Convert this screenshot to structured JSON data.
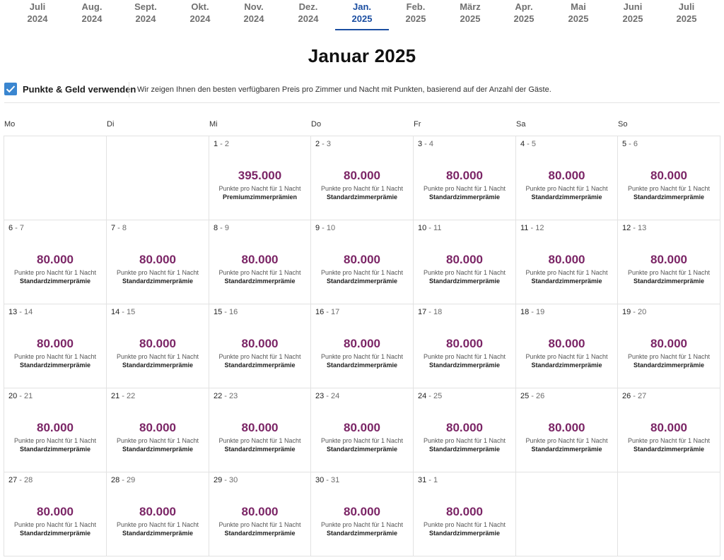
{
  "months": [
    {
      "month": "Juli",
      "year": "2024",
      "active": false
    },
    {
      "month": "Aug.",
      "year": "2024",
      "active": false
    },
    {
      "month": "Sept.",
      "year": "2024",
      "active": false
    },
    {
      "month": "Okt.",
      "year": "2024",
      "active": false
    },
    {
      "month": "Nov.",
      "year": "2024",
      "active": false
    },
    {
      "month": "Dez.",
      "year": "2024",
      "active": false
    },
    {
      "month": "Jan.",
      "year": "2025",
      "active": true
    },
    {
      "month": "Feb.",
      "year": "2025",
      "active": false
    },
    {
      "month": "März",
      "year": "2025",
      "active": false
    },
    {
      "month": "Apr.",
      "year": "2025",
      "active": false
    },
    {
      "month": "Mai",
      "year": "2025",
      "active": false
    },
    {
      "month": "Juni",
      "year": "2025",
      "active": false
    },
    {
      "month": "Juli",
      "year": "2025",
      "active": false
    }
  ],
  "calendar_title": "Januar 2025",
  "points_and_money": {
    "checked": true,
    "label": "Punkte & Geld verwenden",
    "description": "Wir zeigen Ihnen den besten verfügbaren Preis pro Zimmer und Nacht mit Punkten, basierend auf der Anzahl der Gäste."
  },
  "weekdays": [
    "Mo",
    "Di",
    "Mi",
    "Do",
    "Fr",
    "Sa",
    "So"
  ],
  "points_note": "Punkte pro Nacht für 1 Nacht",
  "icons": {
    "checkbox": "check-icon"
  },
  "colors": {
    "accent": "#1b4ea1",
    "points": "#7b2566",
    "checkbox": "#3a86d0"
  },
  "cells": [
    null,
    null,
    {
      "from": "1",
      "to": "2",
      "points": "395.000",
      "type": "Premiumzimmerprämien"
    },
    {
      "from": "2",
      "to": "3",
      "points": "80.000",
      "type": "Standardzimmerprämie"
    },
    {
      "from": "3",
      "to": "4",
      "points": "80.000",
      "type": "Standardzimmerprämie"
    },
    {
      "from": "4",
      "to": "5",
      "points": "80.000",
      "type": "Standardzimmerprämie"
    },
    {
      "from": "5",
      "to": "6",
      "points": "80.000",
      "type": "Standardzimmerprämie"
    },
    {
      "from": "6",
      "to": "7",
      "points": "80.000",
      "type": "Standardzimmerprämie"
    },
    {
      "from": "7",
      "to": "8",
      "points": "80.000",
      "type": "Standardzimmerprämie"
    },
    {
      "from": "8",
      "to": "9",
      "points": "80.000",
      "type": "Standardzimmerprämie"
    },
    {
      "from": "9",
      "to": "10",
      "points": "80.000",
      "type": "Standardzimmerprämie"
    },
    {
      "from": "10",
      "to": "11",
      "points": "80.000",
      "type": "Standardzimmerprämie"
    },
    {
      "from": "11",
      "to": "12",
      "points": "80.000",
      "type": "Standardzimmerprämie"
    },
    {
      "from": "12",
      "to": "13",
      "points": "80.000",
      "type": "Standardzimmerprämie"
    },
    {
      "from": "13",
      "to": "14",
      "points": "80.000",
      "type": "Standardzimmerprämie"
    },
    {
      "from": "14",
      "to": "15",
      "points": "80.000",
      "type": "Standardzimmerprämie"
    },
    {
      "from": "15",
      "to": "16",
      "points": "80.000",
      "type": "Standardzimmerprämie"
    },
    {
      "from": "16",
      "to": "17",
      "points": "80.000",
      "type": "Standardzimmerprämie"
    },
    {
      "from": "17",
      "to": "18",
      "points": "80.000",
      "type": "Standardzimmerprämie"
    },
    {
      "from": "18",
      "to": "19",
      "points": "80.000",
      "type": "Standardzimmerprämie"
    },
    {
      "from": "19",
      "to": "20",
      "points": "80.000",
      "type": "Standardzimmerprämie"
    },
    {
      "from": "20",
      "to": "21",
      "points": "80.000",
      "type": "Standardzimmerprämie"
    },
    {
      "from": "21",
      "to": "22",
      "points": "80.000",
      "type": "Standardzimmerprämie"
    },
    {
      "from": "22",
      "to": "23",
      "points": "80.000",
      "type": "Standardzimmerprämie"
    },
    {
      "from": "23",
      "to": "24",
      "points": "80.000",
      "type": "Standardzimmerprämie"
    },
    {
      "from": "24",
      "to": "25",
      "points": "80.000",
      "type": "Standardzimmerprämie"
    },
    {
      "from": "25",
      "to": "26",
      "points": "80.000",
      "type": "Standardzimmerprämie"
    },
    {
      "from": "26",
      "to": "27",
      "points": "80.000",
      "type": "Standardzimmerprämie"
    },
    {
      "from": "27",
      "to": "28",
      "points": "80.000",
      "type": "Standardzimmerprämie"
    },
    {
      "from": "28",
      "to": "29",
      "points": "80.000",
      "type": "Standardzimmerprämie"
    },
    {
      "from": "29",
      "to": "30",
      "points": "80.000",
      "type": "Standardzimmerprämie"
    },
    {
      "from": "30",
      "to": "31",
      "points": "80.000",
      "type": "Standardzimmerprämie"
    },
    {
      "from": "31",
      "to": "1",
      "points": "80.000",
      "type": "Standardzimmerprämie"
    },
    null,
    null
  ]
}
